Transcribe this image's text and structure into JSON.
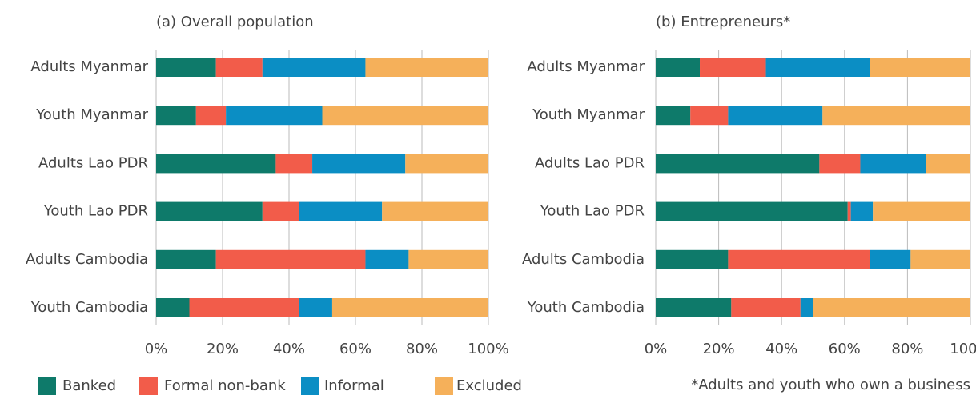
{
  "chart_data": [
    {
      "type": "stacked-bar-horizontal",
      "title": "(a) Overall population",
      "categories": [
        "Adults Myanmar",
        "Youth Myanmar",
        "Adults Lao PDR",
        "Youth Lao PDR",
        "Adults Cambodia",
        "Youth Cambodia"
      ],
      "series": [
        {
          "name": "Banked",
          "color": "#0e7a6a",
          "values": [
            18,
            12,
            36,
            32,
            18,
            10
          ]
        },
        {
          "name": "Formal non-bank",
          "color": "#f25c4a",
          "values": [
            14,
            9,
            11,
            11,
            45,
            33
          ]
        },
        {
          "name": "Informal",
          "color": "#0b8ec4",
          "values": [
            31,
            29,
            28,
            25,
            13,
            10
          ]
        },
        {
          "name": "Excluded",
          "color": "#f5b05a",
          "values": [
            37,
            50,
            25,
            32,
            24,
            47
          ]
        }
      ],
      "xlim": [
        0,
        100
      ],
      "xticks": [
        {
          "value": 0,
          "label": "0%"
        },
        {
          "value": 20,
          "label": "20%"
        },
        {
          "value": 40,
          "label": "40%"
        },
        {
          "value": 60,
          "label": "60%"
        },
        {
          "value": 80,
          "label": "80%"
        },
        {
          "value": 100,
          "label": "100%"
        }
      ],
      "grid": true,
      "legend": "bottom"
    },
    {
      "type": "stacked-bar-horizontal",
      "title": "(b) Entrepreneurs*",
      "categories": [
        "Adults Myanmar",
        "Youth Myanmar",
        "Adults Lao PDR",
        "Youth Lao PDR",
        "Adults Cambodia",
        "Youth Cambodia"
      ],
      "series": [
        {
          "color": "#0e7a6a",
          "values": [
            14,
            11,
            52,
            61,
            23,
            24
          ]
        },
        {
          "color": "#f25c4a",
          "values": [
            21,
            12,
            13,
            1,
            45,
            22
          ]
        },
        {
          "color": "#0b8ec4",
          "values": [
            33,
            30,
            21,
            7,
            13,
            4
          ]
        },
        {
          "color": "#f5b05a",
          "values": [
            32,
            47,
            14,
            31,
            19,
            50
          ]
        }
      ],
      "xlim": [
        0,
        100
      ],
      "xticks": [
        {
          "value": 0,
          "label": "0%"
        },
        {
          "value": 20,
          "label": "20%"
        },
        {
          "value": 40,
          "label": "40%"
        },
        {
          "value": 60,
          "label": "60%"
        },
        {
          "value": 80,
          "label": "80%"
        },
        {
          "value": 100,
          "label": "100%"
        }
      ],
      "grid": true,
      "footnote": "*Adults and youth who own a business"
    }
  ]
}
